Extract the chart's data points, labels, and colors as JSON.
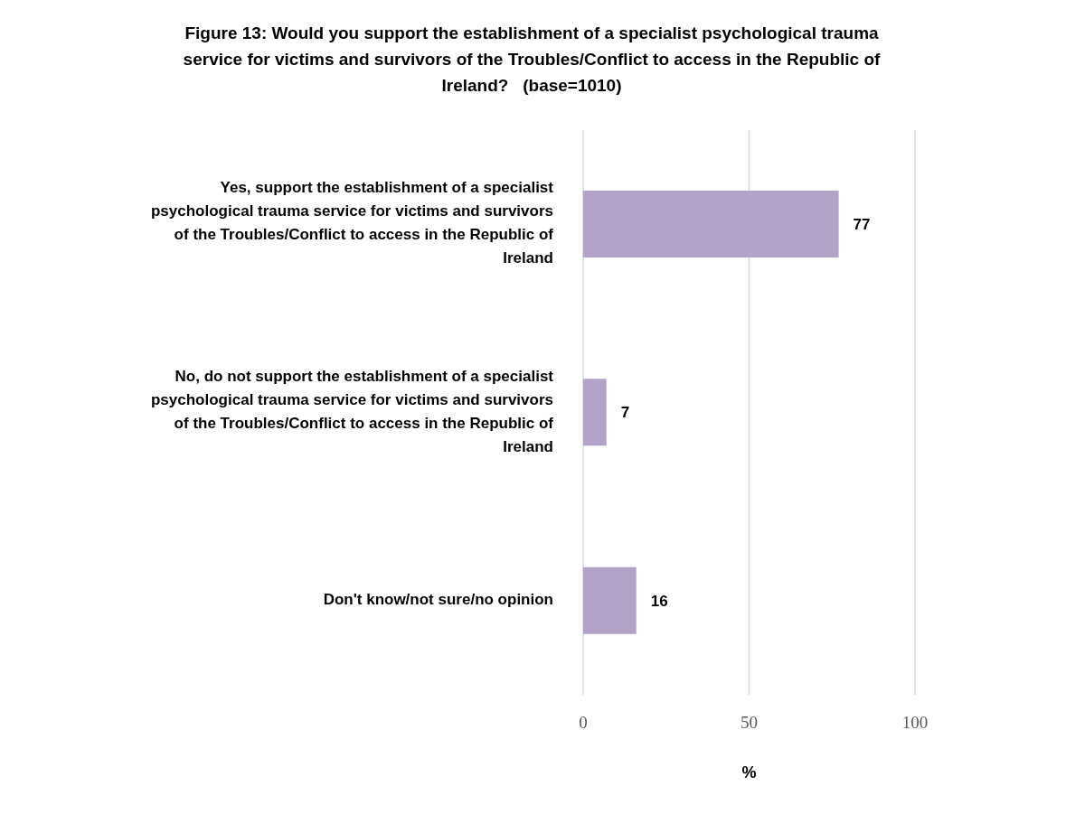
{
  "chart_data": {
    "type": "bar",
    "orientation": "horizontal",
    "title": "Figure 13: Would you support the establishment of a specialist psychological trauma service for victims and survivors of the Troubles/Conflict to access in the Republic of Ireland?   (base=1010)",
    "xlabel": "%",
    "categories": [
      "Yes, support the establishment of a specialist psychological trauma service for victims and survivors of the Troubles/Conflict to access in the Republic of Ireland",
      "No, do not support the establishment of a specialist psychological trauma service for victims and survivors of the Troubles/Conflict to access in the Republic of Ireland",
      "Don't know/not sure/no opinion"
    ],
    "values": [
      77,
      7,
      16
    ],
    "color": "#b3a2c7",
    "xlim": [
      0,
      100
    ],
    "xticks": [
      0,
      50,
      100
    ],
    "grid": "x",
    "data_labels": true
  }
}
